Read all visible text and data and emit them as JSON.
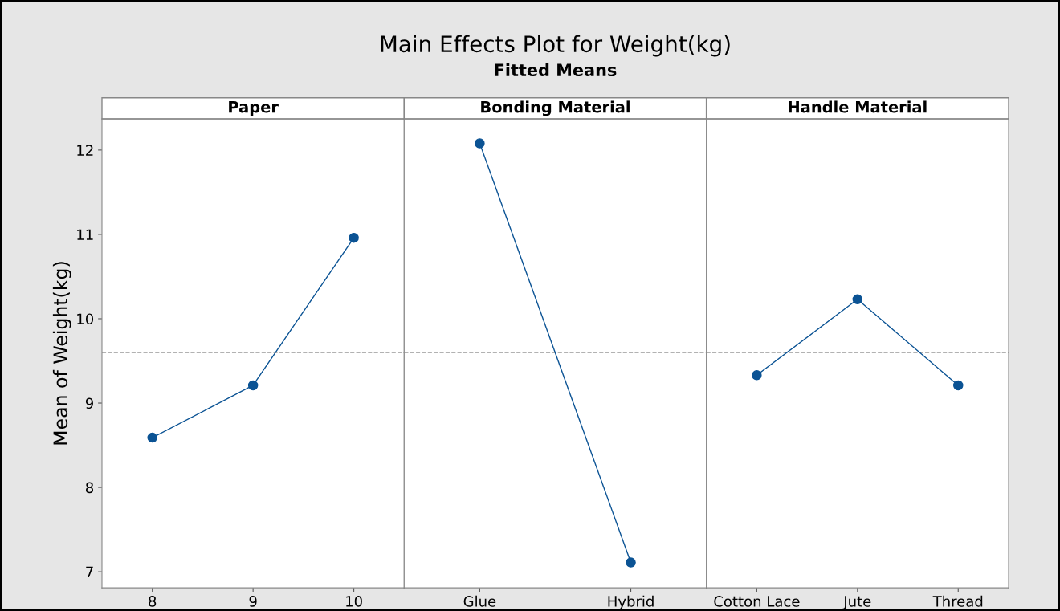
{
  "chart_data": [
    {
      "type": "line",
      "title": "Paper",
      "ylabel": "Mean of Weight(kg)",
      "annotations": [
        "Main Effects Plot for Weight(kg)",
        "Fitted Means"
      ],
      "categories": [
        "8",
        "9",
        "10"
      ],
      "series": [
        {
          "color": "#0b5394",
          "values": [
            8.59,
            9.21,
            10.96
          ]
        }
      ],
      "ylim": [
        6.81,
        12.37
      ],
      "yticks": [
        7,
        8,
        9,
        10,
        11,
        12
      ],
      "grid": false,
      "marker": "circle",
      "line_style": "solid",
      "ref_lines": [
        {
          "axis": "y",
          "value": 9.6,
          "color": "#999999",
          "line_style": "dashed"
        }
      ]
    },
    {
      "type": "line",
      "title": "Bonding Material",
      "categories": [
        "Glue",
        "Hybrid"
      ],
      "series": [
        {
          "color": "#0b5394",
          "values": [
            12.08,
            7.11
          ]
        }
      ],
      "ylim": [
        6.81,
        12.37
      ],
      "tick_labels": "x",
      "grid": false,
      "marker": "circle",
      "line_style": "solid",
      "ref_lines": [
        {
          "axis": "y",
          "value": 9.6,
          "color": "#999999",
          "line_style": "dashed"
        }
      ]
    },
    {
      "type": "line",
      "title": "Handle Material",
      "categories": [
        "Cotton Lace",
        "Jute",
        "Thread"
      ],
      "series": [
        {
          "color": "#0b5394",
          "values": [
            9.33,
            10.23,
            9.21
          ]
        }
      ],
      "ylim": [
        6.81,
        12.37
      ],
      "tick_labels": "x",
      "grid": false,
      "marker": "circle",
      "line_style": "solid",
      "ref_lines": [
        {
          "axis": "y",
          "value": 9.6,
          "color": "#999999",
          "line_style": "dashed"
        }
      ]
    }
  ]
}
